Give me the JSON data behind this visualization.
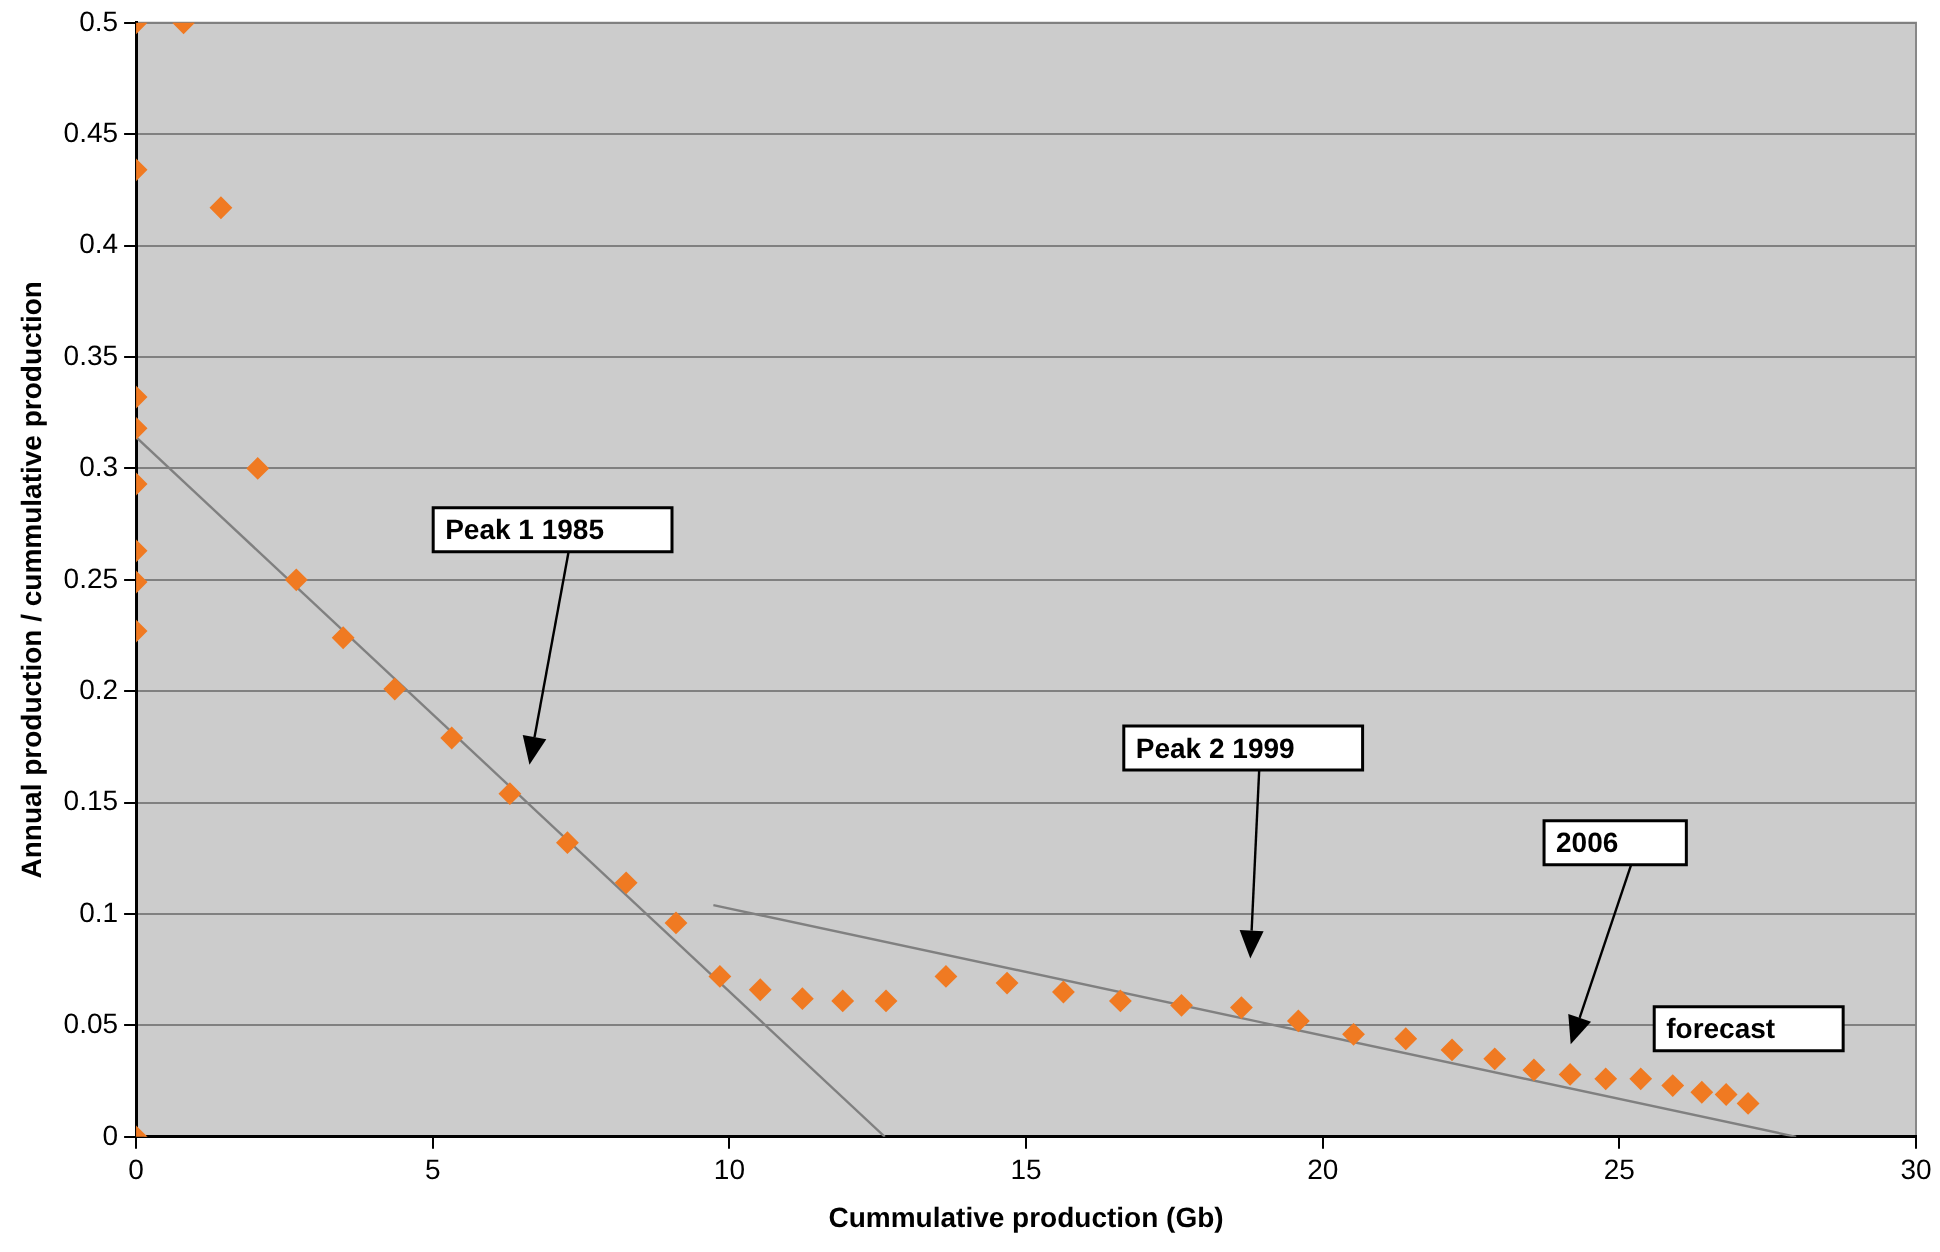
{
  "chart_data": {
    "type": "scatter",
    "xlabel": "Cummulative production (Gb)",
    "ylabel": "Annual production / cummulative production",
    "xlim": [
      0,
      30
    ],
    "xticks": [
      0,
      5,
      10,
      15,
      20,
      25,
      30
    ],
    "ylim": [
      0,
      0.5
    ],
    "yticks": [
      0,
      0.05,
      0.1,
      0.15,
      0.2,
      0.25,
      0.3,
      0.35,
      0.4,
      0.45,
      0.5
    ],
    "grid": "y",
    "legend": false,
    "marker": "diamond",
    "series": [
      {
        "color": "#f07a22",
        "x": [
          0,
          0.8,
          0,
          1.43,
          0,
          0,
          0,
          0,
          0,
          0,
          0,
          2.05,
          2.7,
          3.49,
          4.36,
          5.32,
          6.3,
          7.27,
          8.26,
          9.1,
          9.84,
          10.52,
          11.23,
          11.91,
          12.64,
          13.65,
          14.68,
          15.63,
          16.59,
          17.62,
          18.63,
          19.59,
          20.52,
          21.4,
          22.18,
          22.9,
          23.56,
          24.17,
          24.77,
          25.36,
          25.9,
          26.39,
          26.8,
          27.17
        ],
        "values": [
          0.5,
          0.5,
          0.434,
          0.417,
          0.332,
          0.318,
          0.293,
          0.263,
          0.249,
          0.227,
          0,
          0.3,
          0.25,
          0.224,
          0.201,
          0.179,
          0.154,
          0.132,
          0.114,
          0.096,
          0.072,
          0.066,
          0.062,
          0.061,
          0.061,
          0.072,
          0.069,
          0.065,
          0.061,
          0.059,
          0.058,
          0.052,
          0.046,
          0.044,
          0.039,
          0.035,
          0.03,
          0.028,
          0.026,
          0.026,
          0.023,
          0.02,
          0.019,
          0.015
        ]
      },
      {
        "type": "line",
        "color": "#808080",
        "marker": "none",
        "x": [
          0,
          12.62
        ],
        "values": [
          0.314,
          0
        ]
      },
      {
        "type": "line",
        "color": "#808080",
        "marker": "none",
        "x": [
          9.73,
          27.98
        ],
        "values": [
          0.104,
          0
        ]
      }
    ],
    "annotations": [
      "Peak 1 1985",
      "Peak 2 1999",
      "2006",
      "forecast"
    ]
  }
}
